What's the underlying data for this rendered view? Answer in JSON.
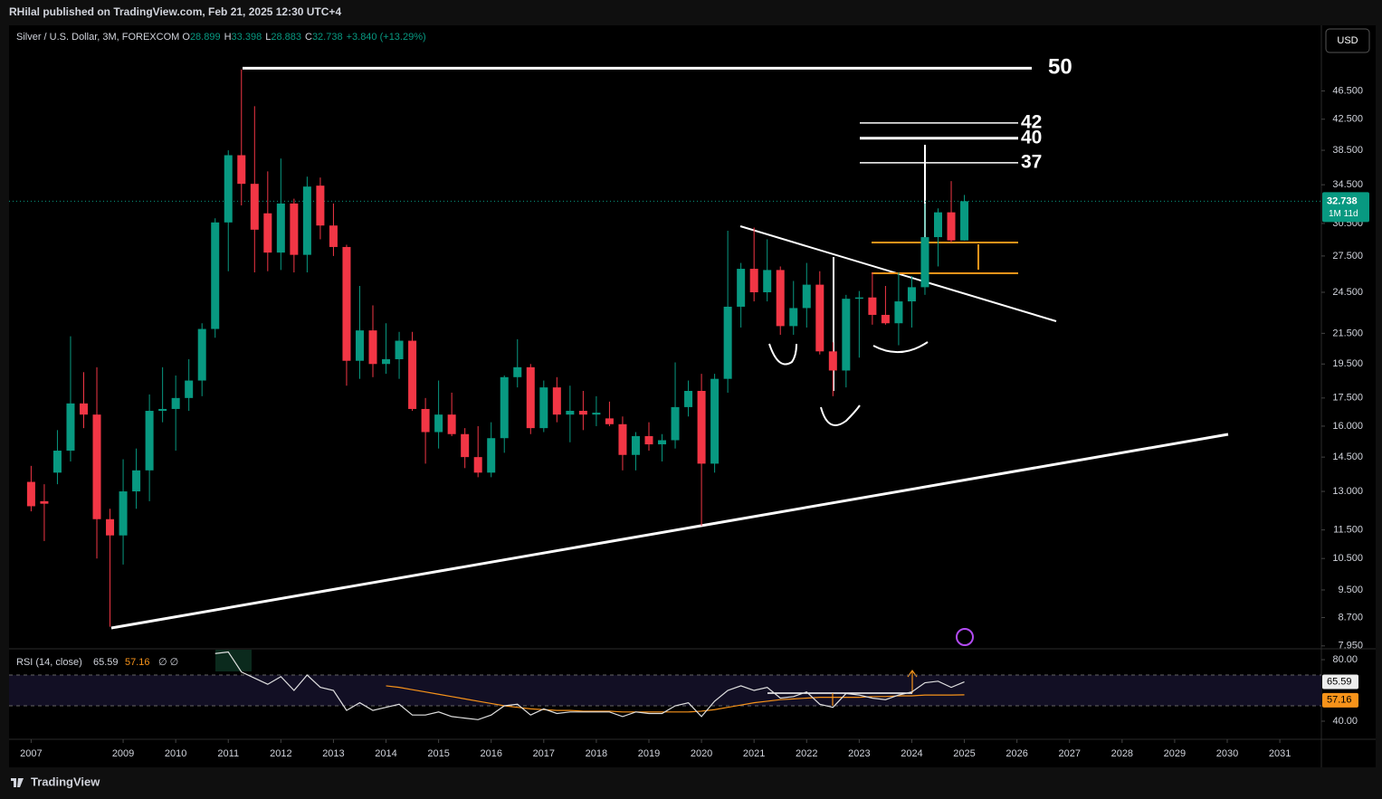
{
  "header": {
    "publisher": "RHilal published on TradingView.com, Feb 21, 2025 12:30 UTC+4",
    "currency": "USD",
    "brand": "TradingView"
  },
  "chart_data": {
    "type": "candlestick",
    "symbol": "Silver / U.S. Dollar, 3M, FOREXCOM",
    "ohlc_letters": [
      "O",
      "H",
      "L",
      "C"
    ],
    "change": "+3.840 (+13.29%)",
    "countdown": "1M 11d",
    "log_scale": true,
    "colors": {
      "up": "#089981",
      "down": "#f23645"
    },
    "x": [
      2007.25,
      2007.5,
      2007.75,
      2008,
      2008.25,
      2008.5,
      2008.75,
      2009,
      2009.25,
      2009.5,
      2009.75,
      2010,
      2010.25,
      2010.5,
      2010.75,
      2011,
      2011.25,
      2011.5,
      2011.75,
      2012,
      2012.25,
      2012.5,
      2012.75,
      2013,
      2013.25,
      2013.5,
      2013.75,
      2014,
      2014.25,
      2014.5,
      2014.75,
      2015,
      2015.25,
      2015.5,
      2015.75,
      2016,
      2016.25,
      2016.5,
      2016.75,
      2017,
      2017.25,
      2017.5,
      2017.75,
      2018,
      2018.25,
      2018.5,
      2018.75,
      2019,
      2019.25,
      2019.5,
      2019.75,
      2020,
      2020.25,
      2020.5,
      2020.75,
      2021,
      2021.25,
      2021.5,
      2021.75,
      2022,
      2022.25,
      2022.5,
      2022.75,
      2023,
      2023.25,
      2023.5,
      2023.75,
      2024,
      2024.25,
      2024.5,
      2024.75,
      2025
    ],
    "open": [
      13.4,
      12.6,
      13.8,
      14.8,
      17.2,
      16.6,
      11.9,
      11.3,
      13.0,
      13.9,
      16.8,
      16.9,
      17.5,
      18.5,
      21.8,
      30.6,
      37.9,
      34.6,
      31.5,
      27.8,
      32.5,
      27.6,
      34.4,
      30.3,
      28.3,
      19.7,
      21.7,
      19.5,
      19.8,
      21.0,
      16.9,
      15.7,
      16.6,
      15.6,
      14.5,
      13.8,
      15.4,
      18.7,
      19.3,
      15.9,
      18.1,
      16.6,
      16.8,
      16.6,
      16.4,
      16.1,
      14.6,
      15.5,
      15.1,
      15.3,
      17.0,
      17.9,
      14.2,
      18.6,
      23.4,
      26.4,
      24.5,
      26.3,
      22.0,
      23.3,
      25.1,
      20.3,
      19.1,
      24.0,
      24.1,
      22.8,
      22.2,
      23.8,
      24.9,
      29.2,
      31.6,
      28.899
    ],
    "high": [
      14.1,
      13.3,
      15.8,
      21.3,
      19.0,
      19.3,
      12.3,
      14.4,
      14.9,
      17.7,
      19.3,
      18.8,
      19.8,
      22.2,
      31.0,
      38.5,
      49.8,
      44.3,
      36.0,
      37.5,
      33.0,
      35.4,
      35.3,
      32.5,
      28.5,
      25.0,
      23.5,
      22.2,
      21.6,
      21.6,
      17.5,
      18.5,
      17.8,
      15.9,
      16.0,
      16.2,
      18.8,
      21.1,
      19.5,
      18.5,
      18.7,
      18.2,
      17.9,
      17.6,
      17.3,
      16.5,
      15.7,
      16.2,
      15.6,
      19.6,
      18.5,
      18.9,
      18.9,
      29.8,
      26.9,
      30.1,
      29.0,
      26.6,
      25.4,
      26.9,
      26.2,
      20.9,
      24.3,
      24.6,
      26.1,
      25.0,
      26.1,
      25.8,
      32.5,
      32.0,
      34.9,
      33.398
    ],
    "low": [
      12.2,
      11.1,
      13.3,
      14.3,
      15.9,
      10.5,
      8.45,
      10.3,
      12.3,
      12.6,
      16.2,
      14.8,
      16.8,
      17.6,
      21.2,
      26.2,
      32.3,
      26.1,
      26.2,
      26.3,
      26.1,
      26.1,
      29.0,
      27.5,
      18.2,
      18.6,
      18.7,
      18.9,
      18.6,
      16.8,
      14.2,
      14.9,
      15.5,
      14.0,
      13.6,
      13.6,
      14.7,
      18.1,
      15.6,
      15.7,
      16.2,
      15.2,
      15.8,
      16.0,
      16.0,
      13.9,
      13.9,
      14.8,
      14.3,
      14.9,
      16.5,
      11.65,
      13.8,
      17.8,
      21.9,
      23.8,
      23.8,
      21.4,
      21.4,
      21.9,
      20.1,
      17.6,
      18.1,
      19.9,
      22.1,
      22.1,
      20.7,
      21.9,
      24.3,
      26.6,
      28.7,
      28.883
    ],
    "close": [
      12.4,
      12.5,
      14.8,
      17.2,
      16.6,
      11.9,
      11.3,
      13.0,
      13.9,
      16.8,
      16.9,
      17.5,
      18.5,
      21.8,
      30.6,
      37.9,
      34.6,
      29.9,
      27.8,
      32.5,
      27.6,
      34.3,
      30.3,
      28.3,
      19.7,
      21.7,
      19.5,
      19.8,
      21.0,
      16.9,
      15.7,
      16.6,
      15.6,
      14.5,
      13.8,
      15.4,
      18.7,
      19.3,
      15.9,
      18.1,
      16.6,
      16.8,
      16.6,
      16.7,
      16.1,
      14.6,
      15.5,
      15.1,
      15.3,
      17.0,
      17.9,
      14.2,
      18.6,
      23.4,
      26.4,
      24.5,
      26.3,
      22.0,
      23.3,
      25.1,
      20.3,
      19.1,
      24.0,
      24.1,
      22.8,
      22.2,
      23.8,
      24.9,
      29.2,
      31.6,
      28.9,
      32.738
    ],
    "xlim": [
      2006.83,
      2031.79
    ],
    "xticks": [
      {
        "value": 2007.25,
        "label": "2007"
      },
      2009,
      2010,
      2011,
      2012,
      2013,
      2014,
      2015,
      2016,
      2017,
      2018,
      2019,
      2020,
      2021,
      2022,
      2023,
      2024,
      2025,
      2026,
      2027,
      2028,
      2029,
      2030,
      2031
    ],
    "ylim": [
      7.9,
      57.3
    ],
    "yticks": [
      {
        "value": 7.95,
        "label": "7.950"
      },
      {
        "value": 8.7,
        "label": "8.700"
      },
      {
        "value": 9.5,
        "label": "9.500"
      },
      {
        "value": 10.5,
        "label": "10.500"
      },
      {
        "value": 11.5,
        "label": "11.500"
      },
      {
        "value": 13,
        "label": "13.000"
      },
      {
        "value": 14.5,
        "label": "14.500"
      },
      {
        "value": 16,
        "label": "16.000"
      },
      {
        "value": 17.5,
        "label": "17.500"
      },
      {
        "value": 19.5,
        "label": "19.500"
      },
      {
        "value": 21.5,
        "label": "21.500"
      },
      {
        "value": 24.5,
        "label": "24.500"
      },
      {
        "value": 27.5,
        "label": "27.500"
      },
      {
        "value": 30.5,
        "label": "30.500"
      },
      {
        "value": 34.5,
        "label": "34.500"
      },
      {
        "value": 38.5,
        "label": "38.500"
      },
      {
        "value": 42.5,
        "label": "42.500"
      },
      {
        "value": 46.5,
        "label": "46.500"
      }
    ],
    "levels": [
      50,
      42,
      40,
      37
    ],
    "rsi": {
      "title": "RSI (14, close)",
      "extra": "∅ ∅",
      "color": "#e0e0e0",
      "ma_color": "#f7931a",
      "values": [
        null,
        null,
        null,
        null,
        null,
        null,
        null,
        null,
        null,
        null,
        null,
        null,
        null,
        null,
        84,
        85,
        72,
        68,
        64,
        69,
        60,
        70,
        62,
        60,
        47,
        52,
        47,
        49,
        51,
        44,
        44,
        46,
        43,
        42,
        41,
        44,
        50,
        51,
        44,
        48,
        45,
        46,
        46,
        46,
        46,
        43,
        46,
        45,
        45,
        50,
        52,
        43,
        53,
        60,
        63,
        60,
        62,
        55,
        56,
        59,
        51,
        49,
        58,
        57,
        55,
        54,
        57,
        59,
        65,
        66,
        62,
        65.59
      ],
      "ma": [
        null,
        null,
        null,
        null,
        null,
        null,
        null,
        null,
        null,
        null,
        null,
        null,
        null,
        null,
        null,
        null,
        null,
        null,
        null,
        null,
        null,
        null,
        null,
        null,
        null,
        null,
        null,
        63,
        62,
        60.5,
        59,
        57.5,
        56,
        54.5,
        53,
        51.5,
        50,
        49,
        48,
        47.5,
        47,
        47,
        46.5,
        46.5,
        46.5,
        46,
        46,
        46,
        46,
        46,
        46,
        46.5,
        47.5,
        49,
        50.5,
        52,
        53,
        54,
        54.5,
        55,
        55.5,
        55.5,
        55.5,
        55.5,
        56,
        56,
        56.5,
        56.5,
        57,
        57,
        57,
        57.16
      ],
      "ylim": [
        29.4,
        86.5
      ],
      "yticks": [
        {
          "value": 40,
          "label": "40.00"
        },
        {
          "value": 80,
          "label": "80.00"
        }
      ],
      "bands": [
        70,
        50
      ]
    }
  }
}
